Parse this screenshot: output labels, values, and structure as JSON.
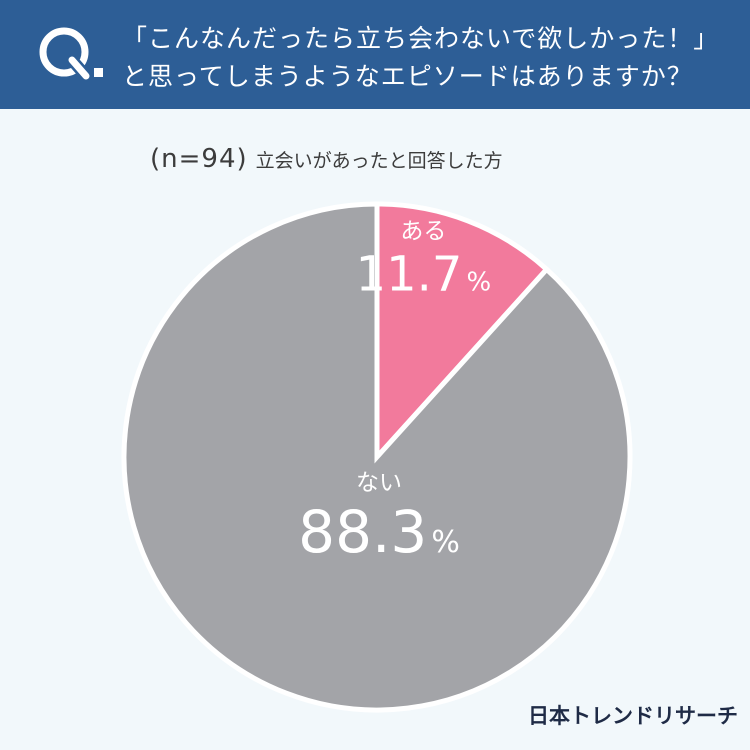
{
  "question": {
    "mark": "Q.",
    "line1": "「こんなんだったら立ち会わないで欲しかった！」",
    "line2": "と思ってしまうようなエピソードはありますか？"
  },
  "sample": {
    "n": "(n=94)",
    "description": "立会いがあったと回答した方"
  },
  "chart_data": {
    "type": "pie",
    "title": "",
    "slices": [
      {
        "label": "ある",
        "value": 11.7,
        "value_label": "11.7",
        "unit": "%",
        "color": "#f27a9c"
      },
      {
        "label": "ない",
        "value": 88.3,
        "value_label": "88.3",
        "unit": "%",
        "color": "#a3a4a8"
      }
    ],
    "start_angle_deg": 0,
    "direction": "clockwise",
    "separator_color": "#ffffff"
  },
  "brand": "日本トレンドリサーチ",
  "colors": {
    "header_bg": "#2d5e96",
    "background": "#f2f8fb",
    "text_dark": "#3c3c3c",
    "label_text": "#ffffff"
  }
}
